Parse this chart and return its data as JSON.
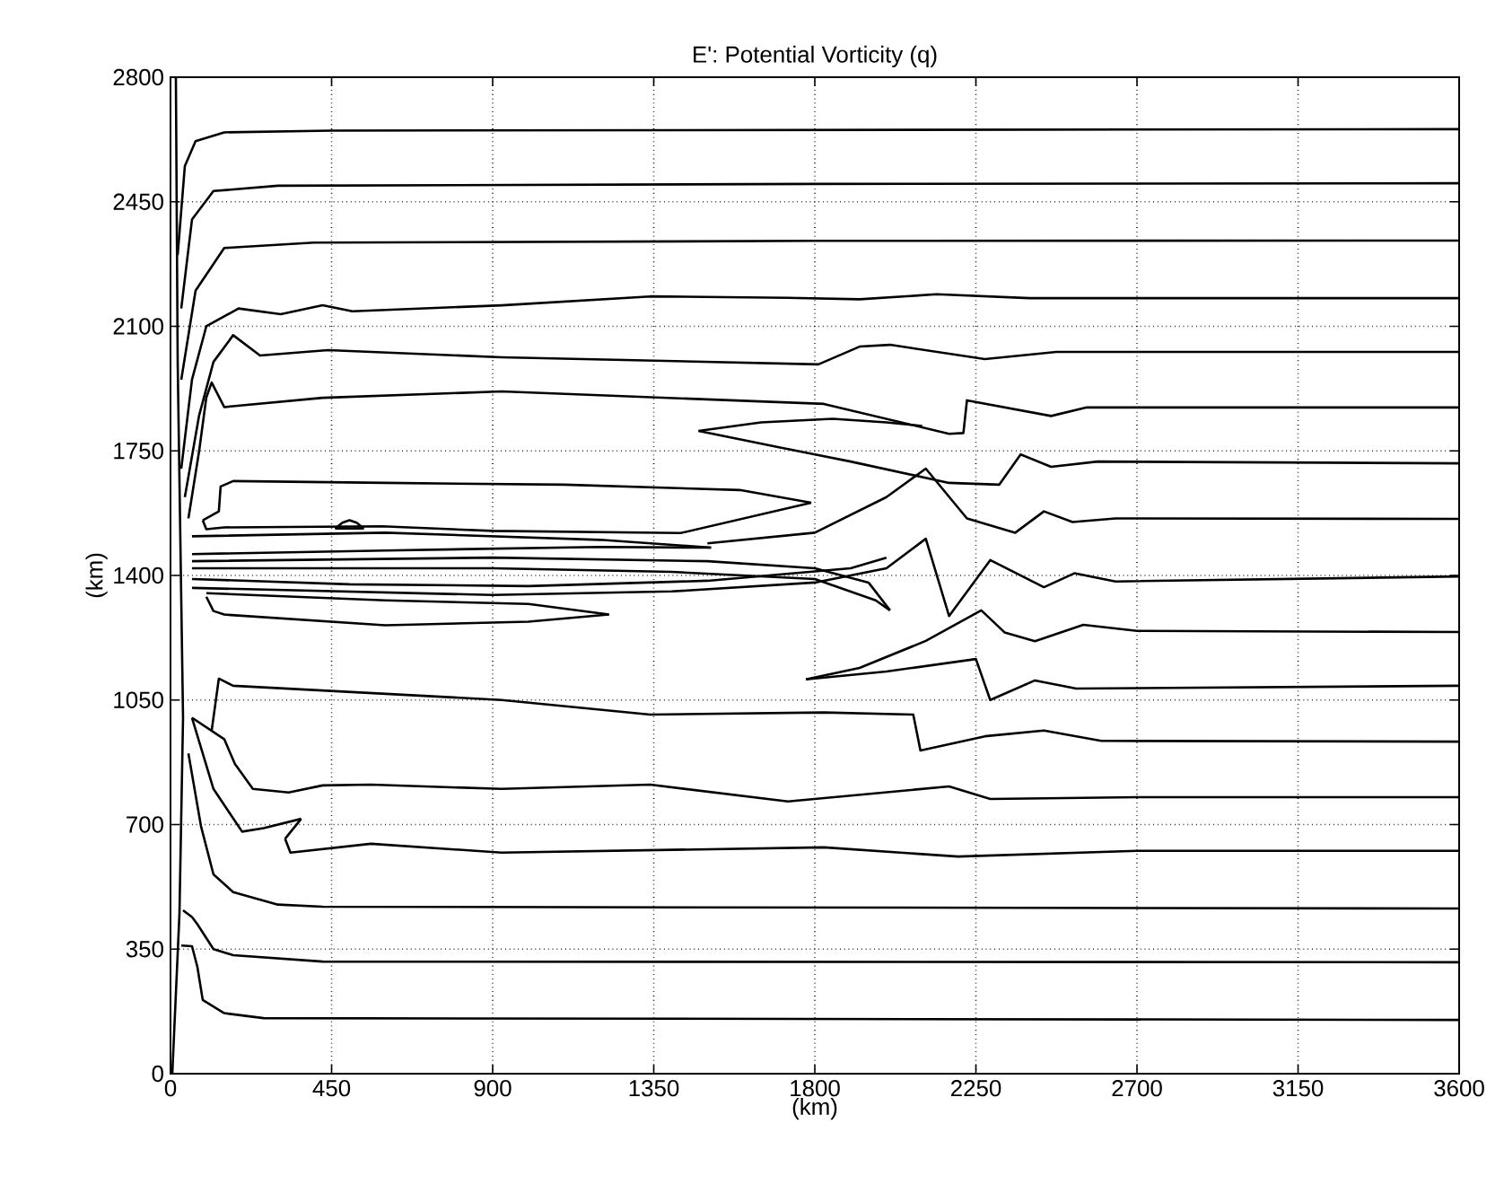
{
  "chart_data": {
    "type": "line",
    "title": "E': Potential Vorticity (q)",
    "xlabel": "(km)",
    "ylabel": "(km)",
    "xlim": [
      0,
      3600
    ],
    "ylim": [
      0,
      2800
    ],
    "xticks": [
      0,
      450,
      900,
      1350,
      1800,
      2250,
      2700,
      3150,
      3600
    ],
    "yticks": [
      0,
      350,
      700,
      1050,
      1400,
      1750,
      2100,
      2450,
      2800
    ],
    "grid": true,
    "series": [
      {
        "color": "#000000",
        "x": [
          20,
          40,
          70,
          150,
          450,
          3600
        ],
        "values": [
          2300,
          2550,
          2620,
          2645,
          2650,
          2654
        ]
      },
      {
        "color": "#000000",
        "x": [
          30,
          60,
          120,
          300,
          1800,
          3600
        ],
        "values": [
          2150,
          2400,
          2480,
          2495,
          2500,
          2502
        ]
      },
      {
        "color": "#000000",
        "x": [
          30,
          70,
          150,
          400,
          1800,
          3600
        ],
        "values": [
          1950,
          2200,
          2320,
          2335,
          2340,
          2341
        ]
      },
      {
        "color": "#000000",
        "x": [
          30,
          60,
          100,
          190,
          308,
          425,
          508,
          925,
          1340,
          1725,
          1925,
          2140,
          2400,
          3600
        ],
        "values": [
          1700,
          1950,
          2100,
          2150,
          2134,
          2159,
          2142,
          2159,
          2184,
          2180,
          2176,
          2190,
          2179,
          2179
        ]
      },
      {
        "color": "#000000",
        "x": [
          40,
          80,
          120,
          175,
          250,
          440,
          925,
          1810,
          1925,
          2010,
          2275,
          2475,
          3600
        ],
        "values": [
          1620,
          1850,
          2000,
          2075,
          2018,
          2033,
          2013,
          1993,
          2043,
          2048,
          2008,
          2028,
          2028
        ]
      },
      {
        "color": "#000000",
        "x": [
          50,
          80,
          100,
          115,
          150,
          425,
          925,
          1825,
          2175,
          2215,
          2225,
          2460,
          2560,
          3600
        ],
        "values": [
          1560,
          1750,
          1900,
          1942,
          1873,
          1899,
          1917,
          1882,
          1798,
          1800,
          1892,
          1848,
          1872,
          1872
        ]
      },
      {
        "color": "#000000",
        "x": [
          1475,
          1700,
          1900,
          2175,
          2315,
          2375,
          2460,
          2590,
          3600
        ],
        "values": [
          1806,
          1760,
          1720,
          1660,
          1655,
          1740,
          1705,
          1720,
          1715
        ]
      },
      {
        "color": "#000000",
        "x": [
          1475,
          1650,
          1850,
          2000,
          2100
        ],
        "values": [
          1806,
          1830,
          1840,
          1830,
          1820
        ]
      },
      {
        "color": "#000000",
        "x": [
          1500,
          1800,
          2000,
          2110,
          2225,
          2360,
          2440,
          2520,
          2640,
          3600
        ],
        "values": [
          1490,
          1520,
          1620,
          1700,
          1560,
          1520,
          1580,
          1550,
          1560,
          1559
        ]
      },
      {
        "color": "#000000",
        "x": [
          60,
          900,
          1400,
          1800,
          2000,
          2110,
          2175,
          2290,
          2440,
          2525,
          2640,
          3600
        ],
        "values": [
          1365,
          1345,
          1355,
          1380,
          1420,
          1503,
          1286,
          1443,
          1367,
          1406,
          1383,
          1397
        ]
      },
      {
        "color": "#000000",
        "x": [
          1775,
          1925,
          2110,
          2265,
          2330,
          2415,
          2550,
          2700,
          3600
        ],
        "values": [
          1108,
          1140,
          1216,
          1302,
          1240,
          1215,
          1261,
          1244,
          1241
        ]
      },
      {
        "color": "#000000",
        "x": [
          1775,
          2000,
          2250,
          2290,
          2415,
          2530,
          3600
        ],
        "values": [
          1108,
          1130,
          1165,
          1050,
          1105,
          1082,
          1090
        ]
      },
      {
        "color": "#000000",
        "x": [
          115,
          135,
          175,
          925,
          1340,
          1825,
          2075,
          2095,
          2275,
          2440,
          2600,
          3600
        ],
        "values": [
          964,
          1110,
          1090,
          1050,
          1009,
          1015,
          1009,
          908,
          948,
          964,
          935,
          933
        ]
      },
      {
        "color": "#000000",
        "x": [
          60,
          150,
          180,
          230,
          330,
          425,
          560,
          925,
          1340,
          1725,
          2175,
          2290,
          2700,
          3600
        ],
        "values": [
          1000,
          940,
          870,
          800,
          790,
          810,
          812,
          800,
          812,
          765,
          807,
          772,
          777,
          777
        ]
      },
      {
        "color": "#000000",
        "x": [
          60,
          120,
          200,
          260,
          365
        ],
        "values": [
          1000,
          800,
          680,
          690,
          716
        ]
      },
      {
        "color": "#000000",
        "x": [
          320,
          365
        ],
        "values": [
          660,
          716
        ]
      },
      {
        "color": "#000000",
        "x": [
          320,
          335,
          560,
          925,
          1825,
          2200,
          2700,
          3600
        ],
        "values": [
          660,
          621,
          646,
          621,
          636,
          610,
          626,
          626
        ]
      },
      {
        "color": "#000000",
        "x": [
          50,
          85,
          120,
          175,
          300,
          425,
          3600
        ],
        "values": [
          900,
          696,
          560,
          510,
          475,
          469,
          464
        ]
      },
      {
        "color": "#000000",
        "x": [
          35,
          60,
          75,
          120,
          175,
          425,
          3600
        ],
        "values": [
          459,
          440,
          420,
          350,
          333,
          315,
          313
        ]
      },
      {
        "color": "#000000",
        "x": [
          30,
          60,
          75,
          90,
          150,
          260,
          3600
        ],
        "values": [
          360,
          358,
          300,
          207,
          170,
          156,
          151
        ]
      },
      {
        "color": "#000000",
        "x": [
          5,
          25,
          35,
          20,
          15
        ],
        "values": [
          0,
          450,
          1000,
          2000,
          2800
        ]
      },
      {
        "color": "#000000",
        "x": [
          90,
          135,
          140,
          175,
          600,
          1100,
          1590,
          1790
        ],
        "values": [
          1555,
          1580,
          1650,
          1665,
          1660,
          1655,
          1640,
          1604
        ]
      },
      {
        "color": "#000000",
        "x": [
          90,
          100,
          150,
          590,
          900,
          1425,
          1790
        ],
        "values": [
          1555,
          1530,
          1535,
          1538,
          1525,
          1519,
          1604
        ]
      },
      {
        "color": "#000000",
        "x": [
          460,
          480,
          500,
          520,
          540
        ],
        "values": [
          1532,
          1548,
          1555,
          1548,
          1532
        ]
      },
      {
        "color": "#000000",
        "x": [
          460,
          540
        ],
        "values": [
          1532,
          1532
        ]
      },
      {
        "color": "#000000",
        "x": [
          60,
          600,
          1200,
          1510
        ],
        "values": [
          1510,
          1520,
          1500,
          1478
        ]
      },
      {
        "color": "#000000",
        "x": [
          60,
          600,
          1200,
          1510
        ],
        "values": [
          1460,
          1470,
          1480,
          1478
        ]
      },
      {
        "color": "#000000",
        "x": [
          60,
          900,
          1500,
          1800,
          1950,
          2010
        ],
        "values": [
          1440,
          1450,
          1440,
          1420,
          1380,
          1302
        ]
      },
      {
        "color": "#000000",
        "x": [
          60,
          900,
          1400,
          1800,
          1970,
          2010
        ],
        "values": [
          1420,
          1420,
          1410,
          1390,
          1330,
          1302
        ]
      },
      {
        "color": "#000000",
        "x": [
          100,
          120,
          150,
          600,
          1000,
          1225
        ],
        "values": [
          1340,
          1300,
          1290,
          1260,
          1270,
          1290
        ]
      },
      {
        "color": "#000000",
        "x": [
          100,
          600,
          1000,
          1225
        ],
        "values": [
          1350,
          1330,
          1320,
          1290
        ]
      },
      {
        "color": "#000000",
        "x": [
          60,
          500,
          1000,
          1500,
          1900,
          2000
        ],
        "values": [
          1390,
          1375,
          1370,
          1385,
          1420,
          1450
        ]
      }
    ]
  }
}
